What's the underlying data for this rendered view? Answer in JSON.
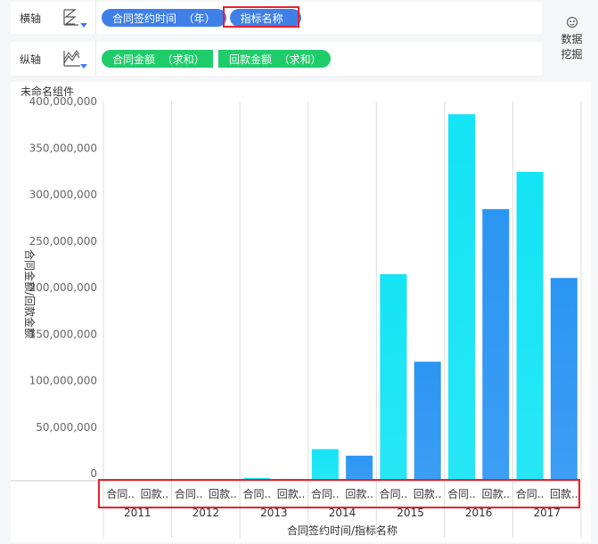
{
  "xaxis": {
    "label": "横轴",
    "pills": [
      "合同签约时间  （年）",
      "指标名称"
    ]
  },
  "yaxis": {
    "label": "纵轴",
    "pills": [
      "合同金额  （求和）",
      "回款金额  （求和）"
    ]
  },
  "data_mining": {
    "label": "数据挖掘"
  },
  "component_title": "未命名组件",
  "colors": {
    "contract": "#14e4f5",
    "payment": "#2b95f3",
    "pill_blue": "#3e80e8",
    "pill_green": "#1fcc6a",
    "highlight": "#e8202a"
  },
  "chart_data": {
    "type": "bar",
    "categories": [
      "2011",
      "2012",
      "2013",
      "2014",
      "2015",
      "2016",
      "2017"
    ],
    "sub_categories": [
      "合同..",
      "回款.."
    ],
    "series": [
      {
        "values": [
          0,
          0,
          3000000,
          34000000,
          222000000,
          394000000,
          332000000
        ]
      },
      {
        "values": [
          0,
          0,
          2000000,
          27000000,
          128000000,
          292000000,
          218000000
        ]
      }
    ],
    "yticks": [
      "0",
      "50,000,000",
      "100,000,000",
      "150,000,000",
      "200,000,000",
      "250,000,000",
      "300,000,000",
      "350,000,000",
      "400,000,000"
    ],
    "ylim": [
      0,
      400000000
    ],
    "ylabel": "合同金额/回款金额",
    "xlabel": "合同签约时间/指标名称",
    "grid": "vertical"
  }
}
